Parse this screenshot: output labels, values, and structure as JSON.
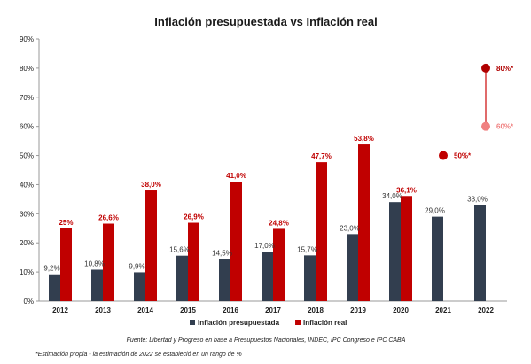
{
  "chart_data": {
    "type": "bar",
    "title": "Inflación presupuestada vs Inflación real",
    "categories": [
      "2012",
      "2013",
      "2014",
      "2015",
      "2016",
      "2017",
      "2018",
      "2019",
      "2020",
      "2021",
      "2022"
    ],
    "ylim": [
      0,
      90
    ],
    "yticks": [
      "0%",
      "10%",
      "20%",
      "30%",
      "40%",
      "50%",
      "60%",
      "70%",
      "80%",
      "90%"
    ],
    "grid": false,
    "legend_position": "bottom",
    "series": [
      {
        "name": "Inflación presupuestada",
        "color": "#323e4f",
        "values": [
          9.2,
          10.8,
          9.9,
          15.6,
          14.5,
          17.0,
          15.7,
          23.0,
          34.0,
          29.0,
          33.0
        ],
        "labels": [
          "9,2%",
          "10,8%",
          "9,9%",
          "15,6%",
          "14,5%",
          "17,0%",
          "15,7%",
          "23,0%",
          "34,0%",
          "29,0%",
          "33,0%"
        ]
      },
      {
        "name": "Inflación real",
        "color": "#c00000",
        "values": [
          25,
          26.6,
          38.0,
          26.9,
          41.0,
          24.8,
          47.7,
          53.8,
          36.1,
          null,
          null
        ],
        "labels": [
          "25%",
          "26,6%",
          "38,0%",
          "26,9%",
          "41,0%",
          "24,8%",
          "47,7%",
          "53,8%",
          "36,1%",
          "",
          ""
        ]
      }
    ],
    "estimates": [
      {
        "category": "2021",
        "value": 50,
        "label": "50%*",
        "color": "#c00000"
      },
      {
        "category": "2022",
        "value": 60,
        "label": "60%*",
        "color": "#f08080"
      },
      {
        "category": "2022",
        "value": 80,
        "label": "80%*",
        "color": "#b00000"
      }
    ],
    "estimate_range_color": "#e06b6b",
    "source": "Fuente: Libertad y Progreso en base a Presupuestos Nacionales, INDEC, IPC Congreso e IPC CABA",
    "note": "*Estimación propia - la estimación de 2022 se estableció en un rango de %"
  }
}
